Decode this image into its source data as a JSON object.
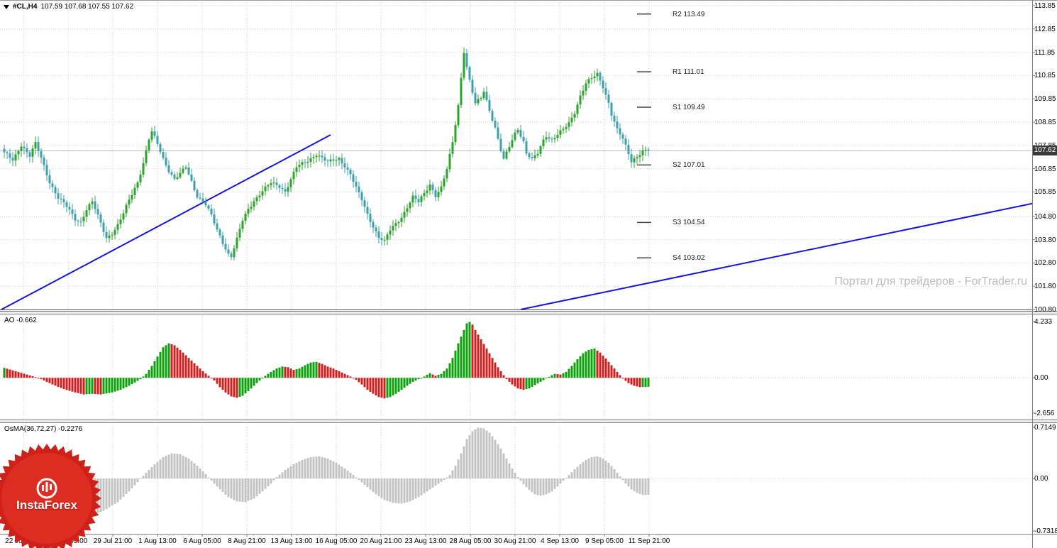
{
  "header": {
    "symbol": "#CL,H4",
    "ohlc": "107.59 107.68 107.55 107.62"
  },
  "watermark": "Портал для трейдеров - ForTrader.ru",
  "price_tag": "107.62",
  "logo": {
    "text": "InstaForex"
  },
  "colors": {
    "up": "#2da32d",
    "down": "#3fa0ad",
    "ao_up": "#0ca00c",
    "ao_down": "#d01f1f",
    "osma": "#c4c4c4",
    "trend": "#1515dd",
    "grid": "#d6d6d6",
    "watermark": "#bcbcbc",
    "price_tag_bg": "#3a3a3a",
    "logo_outer": "#cf2117",
    "logo_inner": "#dd2d22"
  },
  "chart_data": {
    "type": "candlestick",
    "symbol": "#CL",
    "timeframe": "H4",
    "quote": {
      "open": "107.59",
      "high": "107.68",
      "low": "107.55",
      "close": "107.62"
    },
    "time_labels": [
      "22 Jul 2013",
      "25 Jul 05:00",
      "29 Jul 21:00",
      "1 Aug 13:00",
      "6 Aug 05:00",
      "8 Aug 21:00",
      "13 Aug 13:00",
      "16 Aug 05:00",
      "20 Aug 21:00",
      "23 Aug 13:00",
      "28 Aug 05:00",
      "30 Aug 21:00",
      "4 Sep 13:00",
      "9 Sep 05:00",
      "11 Sep 21:00"
    ],
    "main": {
      "y_ticks": [
        "113.85",
        "112.85",
        "111.85",
        "110.85",
        "109.85",
        "108.85",
        "107.85",
        "106.85",
        "105.85",
        "104.80",
        "103.80",
        "102.80",
        "101.80",
        "100.80"
      ],
      "y_range": [
        100.8,
        113.85
      ],
      "current_price": 107.62,
      "candle_count": 228,
      "pivots": [
        {
          "label": "R2 113.49",
          "price": 113.49
        },
        {
          "label": "R1 111.01",
          "price": 111.01
        },
        {
          "label": "S1 109.49",
          "price": 109.49
        },
        {
          "label": "S2 107.01",
          "price": 107.01
        },
        {
          "label": "S3 104.54",
          "price": 104.54
        },
        {
          "label": "S4 103.02",
          "price": 103.02
        }
      ],
      "trendlines": [
        {
          "start": [
            -1,
            100.8
          ],
          "end": [
            115,
            108.3
          ]
        },
        {
          "start": [
            182,
            100.8
          ],
          "end": [
            363,
            105.35
          ]
        }
      ],
      "close_waypoints": [
        [
          0,
          107.5
        ],
        [
          3,
          107.2
        ],
        [
          6,
          107.9
        ],
        [
          9,
          107.4
        ],
        [
          11,
          107.9
        ],
        [
          13,
          107.3
        ],
        [
          16,
          106.3
        ],
        [
          19,
          105.6
        ],
        [
          22,
          105.2
        ],
        [
          25,
          104.7
        ],
        [
          27,
          104.6
        ],
        [
          29,
          105.1
        ],
        [
          31,
          105.4
        ],
        [
          33,
          104.8
        ],
        [
          36,
          103.9
        ],
        [
          38,
          104.1
        ],
        [
          40,
          104.4
        ],
        [
          42,
          104.9
        ],
        [
          44,
          105.5
        ],
        [
          47,
          106.3
        ],
        [
          49,
          107.1
        ],
        [
          51,
          108.1
        ],
        [
          52,
          108.4
        ],
        [
          54,
          107.9
        ],
        [
          56,
          107.3
        ],
        [
          58,
          106.8
        ],
        [
          60,
          106.4
        ],
        [
          62,
          106.6
        ],
        [
          64,
          106.9
        ],
        [
          66,
          106.3
        ],
        [
          68,
          105.7
        ],
        [
          71,
          105.3
        ],
        [
          73,
          104.8
        ],
        [
          75,
          104.2
        ],
        [
          77,
          103.7
        ],
        [
          79,
          103.2
        ],
        [
          80,
          103.1
        ],
        [
          82,
          103.8
        ],
        [
          84,
          104.6
        ],
        [
          86,
          105.1
        ],
        [
          88,
          105.5
        ],
        [
          91,
          105.9
        ],
        [
          94,
          106.2
        ],
        [
          97,
          106.1
        ],
        [
          99,
          105.9
        ],
        [
          101,
          106.4
        ],
        [
          103,
          106.9
        ],
        [
          106,
          107.1
        ],
        [
          108,
          107.3
        ],
        [
          110,
          107.5
        ],
        [
          112,
          107.3
        ],
        [
          114,
          107.1
        ],
        [
          116,
          107.2
        ],
        [
          118,
          107.3
        ],
        [
          120,
          107.0
        ],
        [
          122,
          106.6
        ],
        [
          124,
          106.0
        ],
        [
          126,
          105.5
        ],
        [
          128,
          104.9
        ],
        [
          130,
          104.4
        ],
        [
          132,
          103.9
        ],
        [
          134,
          103.7
        ],
        [
          136,
          104.2
        ],
        [
          138,
          104.5
        ],
        [
          140,
          104.8
        ],
        [
          142,
          105.2
        ],
        [
          144,
          105.6
        ],
        [
          146,
          105.4
        ],
        [
          148,
          105.8
        ],
        [
          150,
          106.2
        ],
        [
          152,
          105.7
        ],
        [
          154,
          106.0
        ],
        [
          156,
          106.8
        ],
        [
          158,
          108.0
        ],
        [
          160,
          109.6
        ],
        [
          161,
          110.8
        ],
        [
          162,
          111.9
        ],
        [
          163,
          111.2
        ],
        [
          164,
          110.6
        ],
        [
          166,
          109.6
        ],
        [
          168,
          109.9
        ],
        [
          169,
          110.2
        ],
        [
          171,
          109.4
        ],
        [
          173,
          108.6
        ],
        [
          175,
          107.6
        ],
        [
          176,
          107.2
        ],
        [
          178,
          107.8
        ],
        [
          180,
          108.4
        ],
        [
          181,
          108.6
        ],
        [
          183,
          108.0
        ],
        [
          184,
          107.5
        ],
        [
          186,
          107.2
        ],
        [
          188,
          107.5
        ],
        [
          190,
          108.1
        ],
        [
          191,
          108.3
        ],
        [
          193,
          108.1
        ],
        [
          195,
          108.3
        ],
        [
          197,
          108.5
        ],
        [
          199,
          108.8
        ],
        [
          201,
          109.3
        ],
        [
          203,
          110.0
        ],
        [
          205,
          110.5
        ],
        [
          207,
          110.7
        ],
        [
          209,
          110.9
        ],
        [
          211,
          110.4
        ],
        [
          213,
          109.7
        ],
        [
          214,
          109.2
        ],
        [
          216,
          108.5
        ],
        [
          218,
          108.1
        ],
        [
          220,
          107.5
        ],
        [
          221,
          107.2
        ],
        [
          223,
          107.4
        ],
        [
          225,
          107.6
        ],
        [
          228,
          107.62
        ]
      ]
    },
    "ao": {
      "label": "AO -0.662",
      "value": -0.662,
      "ticks": [
        "4.233",
        "0.00",
        "-2.656"
      ],
      "range": [
        -2.656,
        4.233
      ],
      "waypoints": [
        [
          0,
          0.75
        ],
        [
          4,
          0.5
        ],
        [
          8,
          0.25
        ],
        [
          11,
          0.05
        ],
        [
          13,
          -0.1
        ],
        [
          17,
          -0.5
        ],
        [
          21,
          -0.85
        ],
        [
          25,
          -1.1
        ],
        [
          28,
          -1.25
        ],
        [
          31,
          -1.2
        ],
        [
          34,
          -1.25
        ],
        [
          38,
          -1.1
        ],
        [
          41,
          -0.9
        ],
        [
          44,
          -0.6
        ],
        [
          46,
          -0.35
        ],
        [
          48,
          -0.1
        ],
        [
          50,
          0.3
        ],
        [
          52,
          0.9
        ],
        [
          54,
          1.6
        ],
        [
          56,
          2.3
        ],
        [
          58,
          2.6
        ],
        [
          60,
          2.45
        ],
        [
          62,
          2.1
        ],
        [
          64,
          1.7
        ],
        [
          66,
          1.3
        ],
        [
          68,
          0.9
        ],
        [
          70,
          0.5
        ],
        [
          72,
          0.15
        ],
        [
          74,
          -0.2
        ],
        [
          76,
          -0.7
        ],
        [
          78,
          -1.1
        ],
        [
          80,
          -1.4
        ],
        [
          82,
          -1.5
        ],
        [
          84,
          -1.35
        ],
        [
          86,
          -1.0
        ],
        [
          88,
          -0.6
        ],
        [
          90,
          -0.2
        ],
        [
          92,
          0.15
        ],
        [
          94,
          0.45
        ],
        [
          96,
          0.7
        ],
        [
          98,
          0.85
        ],
        [
          100,
          0.8
        ],
        [
          102,
          0.6
        ],
        [
          104,
          0.7
        ],
        [
          106,
          0.95
        ],
        [
          108,
          1.15
        ],
        [
          110,
          1.2
        ],
        [
          112,
          1.05
        ],
        [
          114,
          0.85
        ],
        [
          116,
          0.7
        ],
        [
          118,
          0.5
        ],
        [
          120,
          0.3
        ],
        [
          122,
          0.1
        ],
        [
          124,
          -0.15
        ],
        [
          126,
          -0.5
        ],
        [
          128,
          -0.9
        ],
        [
          130,
          -1.2
        ],
        [
          132,
          -1.45
        ],
        [
          134,
          -1.55
        ],
        [
          136,
          -1.45
        ],
        [
          138,
          -1.2
        ],
        [
          140,
          -0.9
        ],
        [
          142,
          -0.6
        ],
        [
          144,
          -0.3
        ],
        [
          146,
          -0.1
        ],
        [
          148,
          0.1
        ],
        [
          150,
          0.35
        ],
        [
          152,
          0.15
        ],
        [
          154,
          0.3
        ],
        [
          156,
          0.7
        ],
        [
          158,
          1.5
        ],
        [
          160,
          2.6
        ],
        [
          162,
          3.6
        ],
        [
          163,
          4.1
        ],
        [
          164,
          4.2
        ],
        [
          165,
          4.0
        ],
        [
          166,
          3.6
        ],
        [
          168,
          2.9
        ],
        [
          170,
          2.2
        ],
        [
          172,
          1.5
        ],
        [
          174,
          0.8
        ],
        [
          176,
          0.2
        ],
        [
          177,
          -0.1
        ],
        [
          179,
          -0.5
        ],
        [
          181,
          -0.8
        ],
        [
          183,
          -0.9
        ],
        [
          185,
          -0.8
        ],
        [
          187,
          -0.55
        ],
        [
          189,
          -0.3
        ],
        [
          191,
          -0.05
        ],
        [
          193,
          0.2
        ],
        [
          194,
          0.3
        ],
        [
          196,
          0.25
        ],
        [
          198,
          0.45
        ],
        [
          200,
          0.9
        ],
        [
          202,
          1.4
        ],
        [
          204,
          1.85
        ],
        [
          206,
          2.1
        ],
        [
          208,
          2.2
        ],
        [
          210,
          1.9
        ],
        [
          212,
          1.45
        ],
        [
          214,
          0.95
        ],
        [
          216,
          0.45
        ],
        [
          218,
          -0.05
        ],
        [
          220,
          -0.4
        ],
        [
          222,
          -0.6
        ],
        [
          224,
          -0.7
        ],
        [
          226,
          -0.68
        ],
        [
          228,
          -0.662
        ]
      ]
    },
    "osma": {
      "label": "OsMA(36,72,27) -0.2276",
      "value": -0.2276,
      "ticks": [
        "0.7149",
        "0.00",
        "-0.7318"
      ],
      "range": [
        -0.7318,
        0.7149
      ],
      "waypoints": [
        [
          0,
          -0.12
        ],
        [
          5,
          -0.25
        ],
        [
          10,
          -0.38
        ],
        [
          15,
          -0.47
        ],
        [
          20,
          -0.53
        ],
        [
          25,
          -0.55
        ],
        [
          30,
          -0.52
        ],
        [
          35,
          -0.45
        ],
        [
          40,
          -0.33
        ],
        [
          44,
          -0.18
        ],
        [
          47,
          -0.05
        ],
        [
          50,
          0.08
        ],
        [
          53,
          0.2
        ],
        [
          56,
          0.3
        ],
        [
          59,
          0.35
        ],
        [
          62,
          0.34
        ],
        [
          65,
          0.28
        ],
        [
          68,
          0.18
        ],
        [
          71,
          0.06
        ],
        [
          73,
          -0.03
        ],
        [
          76,
          -0.15
        ],
        [
          79,
          -0.26
        ],
        [
          82,
          -0.32
        ],
        [
          85,
          -0.33
        ],
        [
          88,
          -0.28
        ],
        [
          91,
          -0.18
        ],
        [
          94,
          -0.07
        ],
        [
          96,
          0.02
        ],
        [
          99,
          0.12
        ],
        [
          102,
          0.2
        ],
        [
          105,
          0.26
        ],
        [
          108,
          0.3
        ],
        [
          111,
          0.31
        ],
        [
          114,
          0.28
        ],
        [
          117,
          0.22
        ],
        [
          120,
          0.14
        ],
        [
          123,
          0.05
        ],
        [
          125,
          -0.02
        ],
        [
          128,
          -0.12
        ],
        [
          131,
          -0.22
        ],
        [
          134,
          -0.3
        ],
        [
          137,
          -0.34
        ],
        [
          140,
          -0.35
        ],
        [
          143,
          -0.32
        ],
        [
          146,
          -0.26
        ],
        [
          149,
          -0.18
        ],
        [
          152,
          -0.1
        ],
        [
          155,
          -0.02
        ],
        [
          157,
          0.05
        ],
        [
          159,
          0.18
        ],
        [
          161,
          0.35
        ],
        [
          163,
          0.55
        ],
        [
          165,
          0.66
        ],
        [
          167,
          0.71
        ],
        [
          169,
          0.7
        ],
        [
          171,
          0.64
        ],
        [
          173,
          0.54
        ],
        [
          175,
          0.42
        ],
        [
          177,
          0.28
        ],
        [
          179,
          0.14
        ],
        [
          181,
          0.02
        ],
        [
          183,
          -0.08
        ],
        [
          185,
          -0.16
        ],
        [
          187,
          -0.22
        ],
        [
          189,
          -0.24
        ],
        [
          191,
          -0.22
        ],
        [
          193,
          -0.18
        ],
        [
          195,
          -0.11
        ],
        [
          197,
          -0.03
        ],
        [
          199,
          0.05
        ],
        [
          201,
          0.13
        ],
        [
          203,
          0.2
        ],
        [
          205,
          0.26
        ],
        [
          207,
          0.3
        ],
        [
          209,
          0.31
        ],
        [
          211,
          0.28
        ],
        [
          213,
          0.22
        ],
        [
          215,
          0.13
        ],
        [
          217,
          0.03
        ],
        [
          219,
          -0.07
        ],
        [
          221,
          -0.15
        ],
        [
          223,
          -0.2
        ],
        [
          225,
          -0.23
        ],
        [
          228,
          -0.2276
        ]
      ]
    }
  }
}
